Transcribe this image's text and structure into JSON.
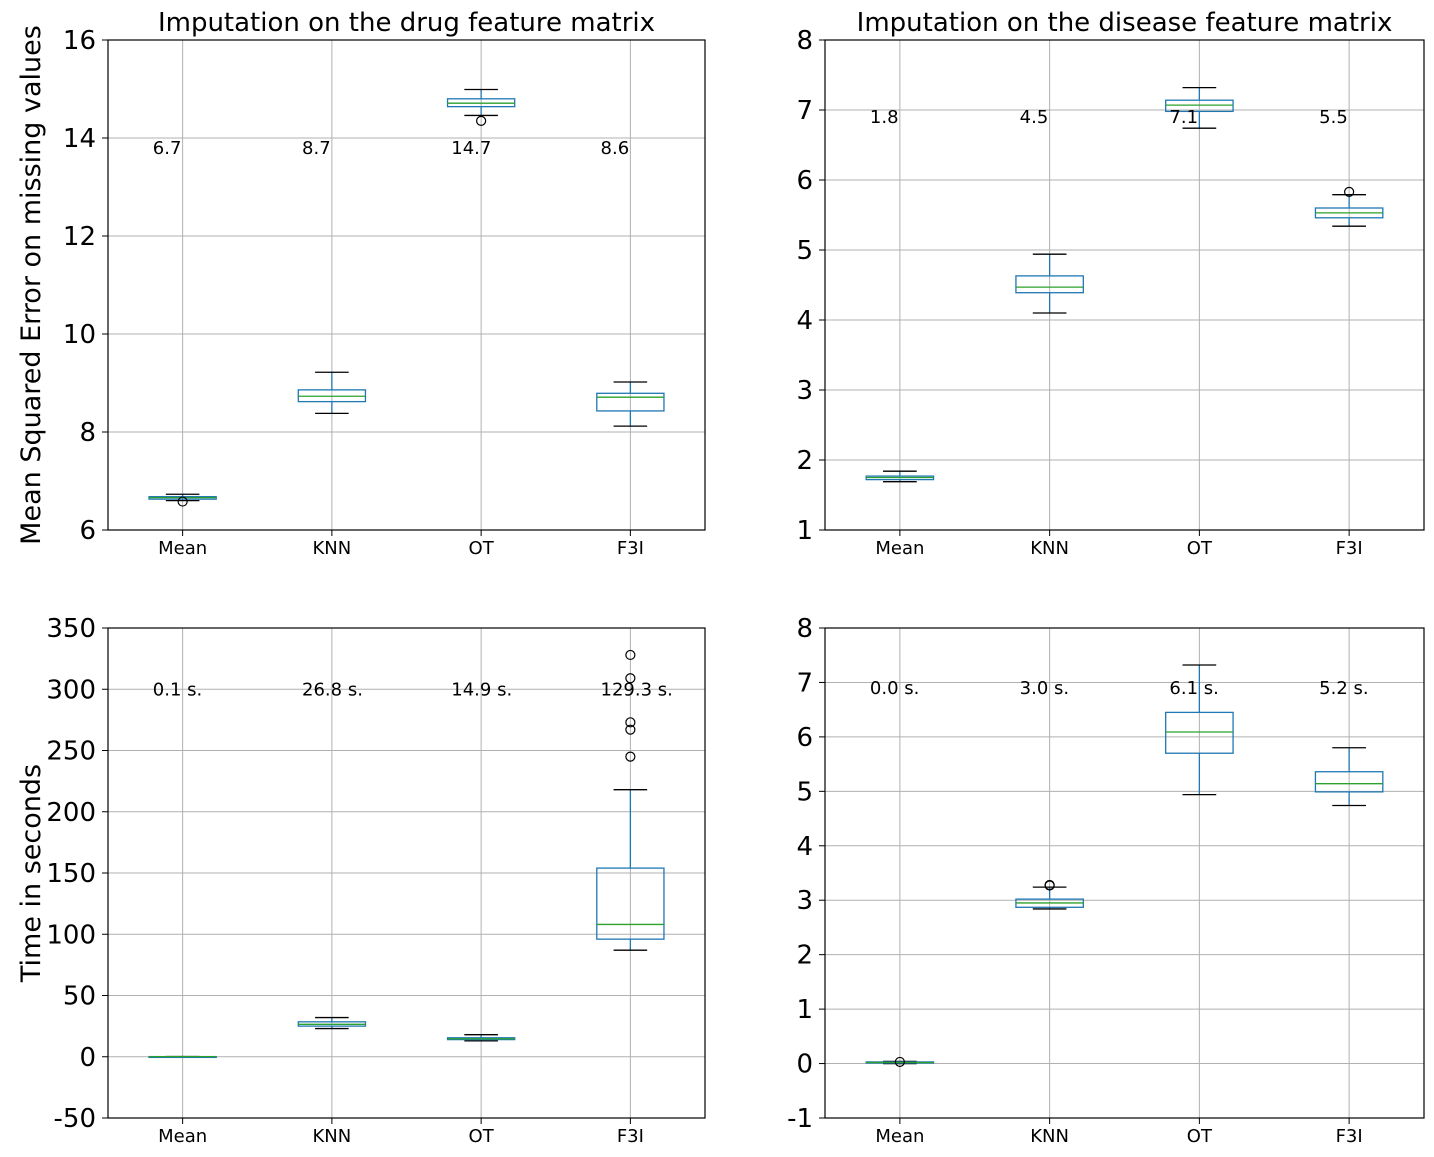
{
  "chart_data": [
    {
      "type": "box",
      "title": "Imputation on the drug feature matrix",
      "xlabel": "",
      "ylabel": "Mean Squared Error on missing values",
      "ylim": [
        6,
        16
      ],
      "yticks": [
        "6",
        "8",
        "10",
        "12",
        "14",
        "16"
      ],
      "categories": [
        "Mean",
        "KNN",
        "OT",
        "F3I"
      ],
      "grid": true,
      "boxes": [
        {
          "whislo": 6.6,
          "q1": 6.63,
          "med": 6.66,
          "q3": 6.68,
          "whishi": 6.73,
          "fliers": [
            6.58
          ]
        },
        {
          "whislo": 8.38,
          "q1": 8.62,
          "med": 8.73,
          "q3": 8.86,
          "whishi": 9.22,
          "fliers": []
        },
        {
          "whislo": 14.46,
          "q1": 14.64,
          "med": 14.71,
          "q3": 14.8,
          "whishi": 14.99,
          "fliers": [
            14.35
          ]
        },
        {
          "whislo": 8.12,
          "q1": 8.43,
          "med": 8.71,
          "q3": 8.79,
          "whishi": 9.02,
          "fliers": []
        }
      ],
      "annotations": [
        "6.7",
        "8.7",
        "14.7",
        "8.6"
      ],
      "annotation_y": 13.8
    },
    {
      "type": "box",
      "title": "Imputation on the disease feature matrix",
      "xlabel": "",
      "ylabel": "",
      "ylim": [
        1,
        8
      ],
      "yticks": [
        "1",
        "2",
        "3",
        "4",
        "5",
        "6",
        "7",
        "8"
      ],
      "categories": [
        "Mean",
        "KNN",
        "OT",
        "F3I"
      ],
      "grid": true,
      "boxes": [
        {
          "whislo": 1.69,
          "q1": 1.72,
          "med": 1.75,
          "q3": 1.77,
          "whishi": 1.84,
          "fliers": []
        },
        {
          "whislo": 4.1,
          "q1": 4.39,
          "med": 4.47,
          "q3": 4.63,
          "whishi": 4.94,
          "fliers": []
        },
        {
          "whislo": 6.74,
          "q1": 6.98,
          "med": 7.07,
          "q3": 7.14,
          "whishi": 7.32,
          "fliers": []
        },
        {
          "whislo": 5.34,
          "q1": 5.46,
          "med": 5.53,
          "q3": 5.6,
          "whishi": 5.79,
          "fliers": [
            5.83
          ]
        }
      ],
      "annotations": [
        "1.8",
        "4.5",
        "7.1",
        "5.5"
      ],
      "annotation_y": 6.9
    },
    {
      "type": "box",
      "title": "",
      "xlabel": "",
      "ylabel": "Time in seconds",
      "ylim": [
        -50,
        350
      ],
      "yticks": [
        "-50",
        "0",
        "50",
        "100",
        "150",
        "200",
        "250",
        "300",
        "350"
      ],
      "categories": [
        "Mean",
        "KNN",
        "OT",
        "F3I"
      ],
      "grid": true,
      "boxes": [
        {
          "whislo": 0.05,
          "q1": 0.08,
          "med": 0.1,
          "q3": 0.12,
          "whishi": 0.15,
          "fliers": []
        },
        {
          "whislo": 23,
          "q1": 25,
          "med": 26.5,
          "q3": 28.5,
          "whishi": 32,
          "fliers": []
        },
        {
          "whislo": 13,
          "q1": 14,
          "med": 14.7,
          "q3": 15.5,
          "whishi": 18,
          "fliers": []
        },
        {
          "whislo": 87,
          "q1": 96,
          "med": 108,
          "q3": 154,
          "whishi": 218,
          "fliers": [
            245,
            267,
            273,
            309,
            328
          ]
        }
      ],
      "annotations": [
        "0.1 s.",
        "26.8 s.",
        "14.9 s.",
        "129.3 s."
      ],
      "annotation_y": 300
    },
    {
      "type": "box",
      "title": "",
      "xlabel": "",
      "ylabel": "",
      "ylim": [
        -1,
        8
      ],
      "yticks": [
        "-1",
        "0",
        "1",
        "2",
        "3",
        "4",
        "5",
        "6",
        "7",
        "8"
      ],
      "categories": [
        "Mean",
        "KNN",
        "OT",
        "F3I"
      ],
      "grid": true,
      "boxes": [
        {
          "whislo": 0.0,
          "q1": 0.01,
          "med": 0.02,
          "q3": 0.03,
          "whishi": 0.04,
          "fliers": [
            0.03
          ]
        },
        {
          "whislo": 2.84,
          "q1": 2.87,
          "med": 2.95,
          "q3": 3.02,
          "whishi": 3.24,
          "fliers": [
            3.27,
            3.28
          ]
        },
        {
          "whislo": 4.94,
          "q1": 5.7,
          "med": 6.09,
          "q3": 6.45,
          "whishi": 7.32,
          "fliers": []
        },
        {
          "whislo": 4.74,
          "q1": 4.99,
          "med": 5.14,
          "q3": 5.36,
          "whishi": 5.8,
          "fliers": []
        }
      ],
      "annotations": [
        "0.0 s.",
        "3.0 s.",
        "6.1 s.",
        "5.2 s."
      ],
      "annotation_y": 6.9
    }
  ]
}
